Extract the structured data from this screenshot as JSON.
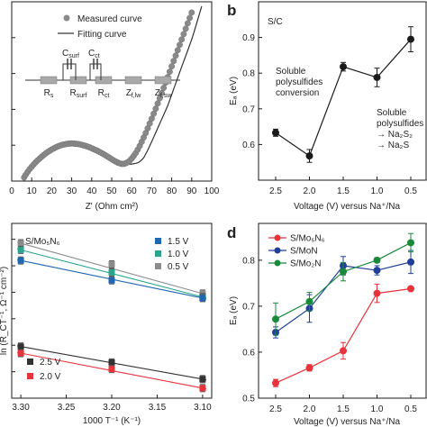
{
  "chart_data": [
    {
      "type": "scatter",
      "panel_label": "",
      "xlabel": "Z' (Ohm cm²)",
      "ylabel": "",
      "xlim": [
        0,
        100
      ],
      "ylim": [
        0,
        100
      ],
      "xticks": [
        "0",
        "10",
        "20",
        "30",
        "40",
        "50",
        "60",
        "70",
        "80",
        "90",
        "100"
      ],
      "yticks": [],
      "legend": [
        "Measured curve",
        "Fitting curve"
      ],
      "circuit_labels": [
        "R_s",
        "R_surf",
        "R_ct",
        "Z_f,lw",
        "Z_f,sw"
      ],
      "circuit_top_labels": [
        "C_surf",
        "C_ct"
      ],
      "series": [
        {
          "name": "Measured curve",
          "x": [
            6.2,
            7,
            8,
            9,
            10,
            11,
            12,
            13,
            14,
            15,
            16,
            17,
            18,
            19,
            20,
            21,
            22,
            23,
            24,
            25,
            26,
            27,
            28,
            29,
            30,
            31,
            32,
            33,
            34,
            35,
            36,
            37,
            38,
            39,
            40,
            41,
            42,
            43,
            44,
            45,
            46,
            47,
            48,
            49,
            50,
            51,
            52,
            53,
            54,
            55,
            56,
            57,
            58,
            59,
            60,
            61,
            62,
            63,
            64,
            65,
            66,
            67,
            68,
            69,
            70,
            71,
            72,
            73,
            74,
            75,
            76,
            77,
            78,
            79,
            80,
            81,
            82,
            83,
            84,
            85,
            86,
            87,
            88,
            89,
            90
          ],
          "y": [
            2,
            3.5,
            5.2,
            6.7,
            8.0,
            9.3,
            10.5,
            11.6,
            12.6,
            13.6,
            14.5,
            15.4,
            16.2,
            16.9,
            17.6,
            18.2,
            18.8,
            19.3,
            19.7,
            20.1,
            20.4,
            20.6,
            20.8,
            20.9,
            21.0,
            20.9,
            20.8,
            20.7,
            20.5,
            20.2,
            19.9,
            19.6,
            19.2,
            18.8,
            18.3,
            17.8,
            17.3,
            16.8,
            16.2,
            15.6,
            15.0,
            14.3,
            13.6,
            12.9,
            12.2,
            11.5,
            10.9,
            10.3,
            9.9,
            9.6,
            9.6,
            9.9,
            10.5,
            11.4,
            12.6,
            14.0,
            15.6,
            17.5,
            19.6,
            21.9,
            24.3,
            26.8,
            29.4,
            32.1,
            34.8,
            37.6,
            40.4,
            43.3,
            46.2,
            49.1,
            52.0,
            55.0,
            58.0,
            61.0,
            64.0,
            67.0,
            70.0,
            73.0,
            76.0,
            79.0,
            82.0,
            85.0,
            88.0,
            91.0,
            94.0
          ]
        },
        {
          "name": "Fitting curve",
          "x": [
            6,
            10,
            15,
            20,
            25,
            30,
            35,
            40,
            45,
            50,
            55,
            58,
            60,
            62,
            63,
            64,
            65,
            66,
            68,
            70,
            72,
            75,
            78,
            80,
            82,
            85,
            88,
            90,
            91,
            92,
            93,
            95
          ],
          "y": [
            1.5,
            7.8,
            13.4,
            17.5,
            20.0,
            21.0,
            20.3,
            18.2,
            15.3,
            11.8,
            9.6,
            9.4,
            9.5,
            9.9,
            10.2,
            10.8,
            11.8,
            13.0,
            17.2,
            22.0,
            27.0,
            34.5,
            42.0,
            48.2,
            54.5,
            63.8,
            72.8,
            79.0,
            82.5,
            86.2,
            90.0,
            97.5
          ]
        }
      ]
    },
    {
      "type": "line",
      "panel_label": "b",
      "title": "S/C",
      "xlabel": "Voltage (V) versus Na⁺/Na",
      "ylabel": "Eₐ (eV)",
      "categories": [
        "2.5",
        "2.0",
        "1.5",
        "1.0",
        "0.5"
      ],
      "ylim": [
        0.5,
        1.0
      ],
      "yticks": [
        "0.6",
        "0.7",
        "0.8",
        "0.9"
      ],
      "annotations": [
        "Soluble",
        "polysulfides",
        "conversion",
        "Soluble",
        "polysulfides",
        "→ Na₂S₂",
        "→ Na₂S"
      ],
      "series": [
        {
          "name": "",
          "color": "#1a1a1a",
          "values": [
            0.633,
            0.568,
            0.818,
            0.788,
            0.895
          ],
          "errors": [
            0.01,
            0.018,
            0.012,
            0.026,
            0.035
          ]
        }
      ]
    },
    {
      "type": "line",
      "panel_label": "",
      "title": "S/Mo₅N₆",
      "xlabel": "1000 T⁻¹ (K⁻¹)",
      "ylabel": "ln (R_CT⁻¹, Ω⁻¹ cm⁻²)",
      "xlim": [
        3.31,
        3.09
      ],
      "xticks": [
        "3.30",
        "3.25",
        "3.20",
        "3.15",
        "3.10"
      ],
      "x_values": [
        3.3,
        3.2,
        3.1
      ],
      "legend": [
        "1.5 V",
        "1.0 V",
        "0.5 V",
        "2.5 V",
        "2.0 V"
      ],
      "series": [
        {
          "name": "0.5 V",
          "color": "#8c8c8c",
          "values": [
            6.85,
            6.05,
            4.95
          ]
        },
        {
          "name": "1.0 V",
          "color": "#2aa58c",
          "values": [
            6.6,
            5.75,
            4.82
          ]
        },
        {
          "name": "1.5 V",
          "color": "#1f66b3",
          "values": [
            6.2,
            5.45,
            4.78
          ]
        },
        {
          "name": "2.5 V",
          "color": "#333333",
          "values": [
            2.95,
            2.35,
            1.72
          ]
        },
        {
          "name": "2.0 V",
          "color": "#e8333b",
          "values": [
            2.7,
            2.1,
            1.38
          ]
        }
      ]
    },
    {
      "type": "line",
      "panel_label": "d",
      "xlabel": "Voltage (V) versus Na⁺/Na",
      "ylabel": "Eₐ (eV)",
      "categories": [
        "2.5",
        "2.0",
        "1.5",
        "1.0",
        "0.5"
      ],
      "ylim": [
        0.5,
        0.88
      ],
      "yticks": [
        "0.5",
        "0.6",
        "0.7",
        "0.8"
      ],
      "legend": [
        "S/Mo₅N₆",
        "S/MoN",
        "S/Mo₂N"
      ],
      "series": [
        {
          "name": "S/Mo₅N₆",
          "color": "#e8333b",
          "values": [
            0.533,
            0.566,
            0.603,
            0.728,
            0.738
          ],
          "errors": [
            0.008,
            0.007,
            0.018,
            0.02,
            0.004
          ]
        },
        {
          "name": "S/MoN",
          "color": "#1f3f99",
          "values": [
            0.643,
            0.695,
            0.788,
            0.778,
            0.796
          ],
          "errors": [
            0.012,
            0.03,
            0.02,
            0.01,
            0.025
          ]
        },
        {
          "name": "S/Mo₂N",
          "color": "#1a8a3a",
          "values": [
            0.672,
            0.71,
            0.775,
            0.8,
            0.838
          ],
          "errors": [
            0.035,
            0.02,
            0.02,
            0.005,
            0.02
          ]
        }
      ]
    }
  ]
}
